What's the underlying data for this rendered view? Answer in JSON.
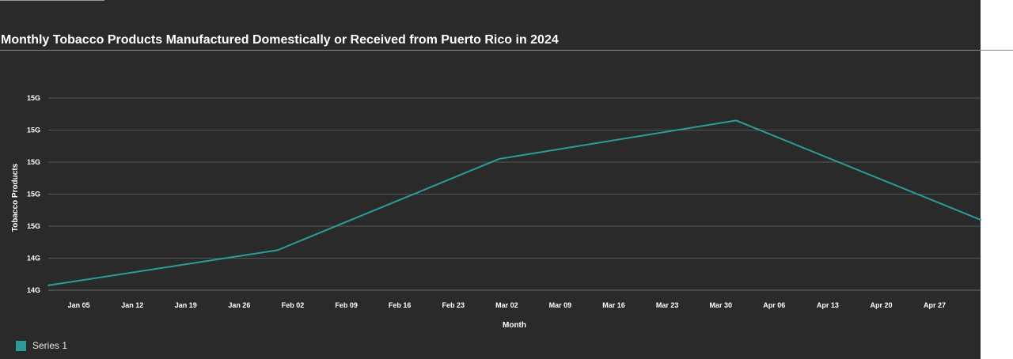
{
  "title": "Monthly Tobacco Products Manufactured Domestically or Received from Puerto Rico in 2024",
  "colors": {
    "background": "#2a2a2a",
    "line": "#2a9d9a",
    "grid": "#555555",
    "text": "#ffffff"
  },
  "chart_data": {
    "type": "line",
    "title": "Monthly Tobacco Products Manufactured Domestically or Received from Puerto Rico in 2024",
    "xlabel": "Month",
    "ylabel": "Tobacco Products",
    "x_ticks": [
      "Jan 05",
      "Jan 12",
      "Jan 19",
      "Jan 26",
      "Feb 02",
      "Feb 09",
      "Feb 16",
      "Feb 23",
      "Mar 02",
      "Mar 09",
      "Mar 16",
      "Mar 23",
      "Mar 30",
      "Apr 06",
      "Apr 13",
      "Apr 20",
      "Apr 27"
    ],
    "y_ticks": [
      "14G",
      "14G",
      "15G",
      "15G",
      "15G",
      "15G",
      "15G"
    ],
    "x_range": [
      "2024-01-01",
      "2024-05-02"
    ],
    "y_range": [
      14.0,
      15.2
    ],
    "grid": true,
    "legend_position": "bottom-left",
    "series": [
      {
        "name": "Series 1",
        "points": [
          {
            "x": "2024-01-01",
            "y": 14.03
          },
          {
            "x": "2024-01-31",
            "y": 14.25
          },
          {
            "x": "2024-02-29",
            "y": 14.82
          },
          {
            "x": "2024-03-31",
            "y": 15.06
          },
          {
            "x": "2024-05-02",
            "y": 14.44
          }
        ]
      }
    ]
  }
}
